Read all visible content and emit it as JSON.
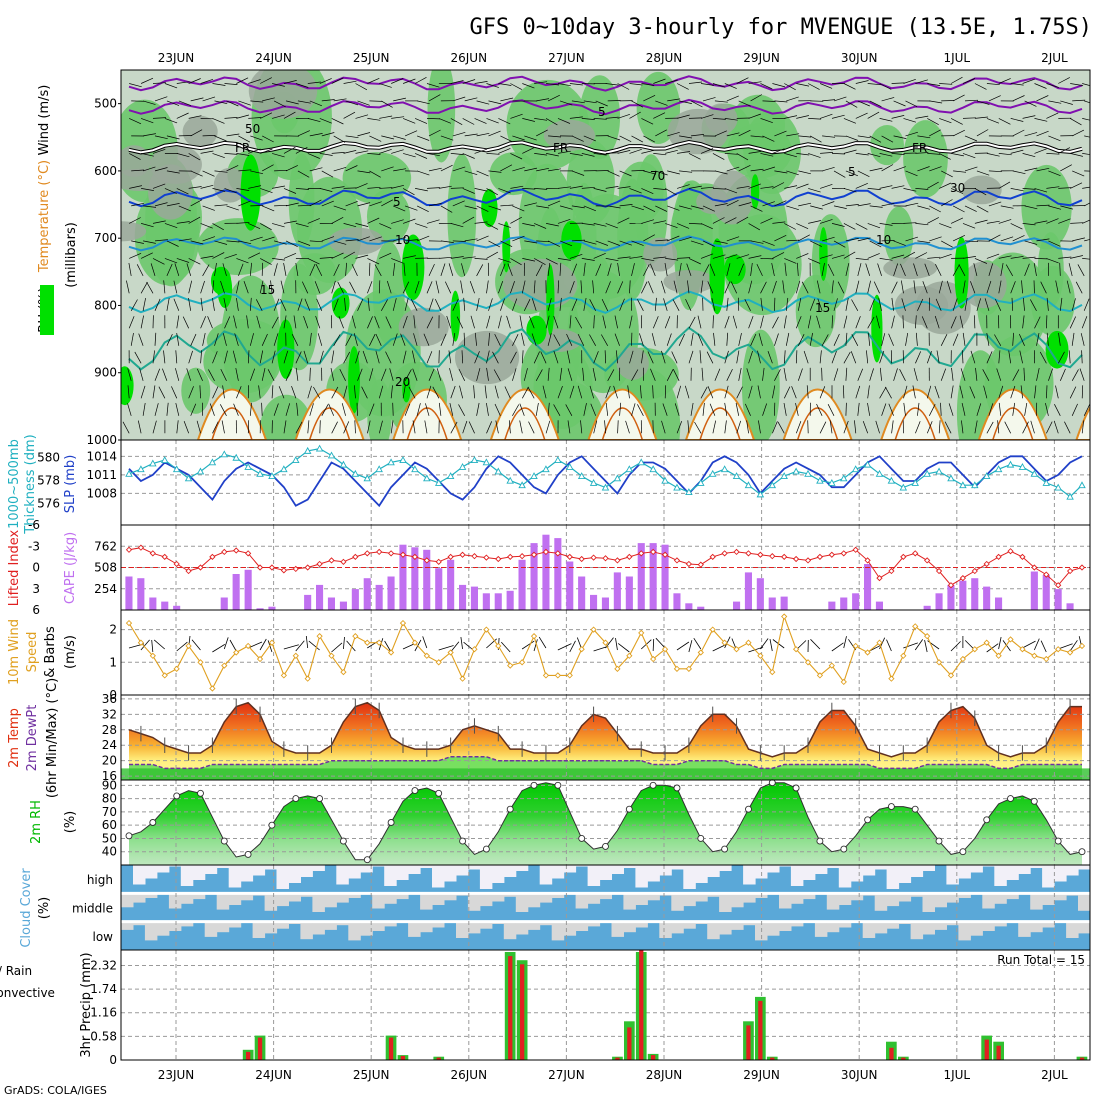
{
  "title": "GFS 0~10day 3-hourly for MVENGUE (13.5E, 1.75S)",
  "credit": "GrADS: COLA/IGES",
  "run_total_label": "Run Total = 15",
  "colors": {
    "rh_green": "#00e000",
    "rh_mid": "#6cc86c",
    "rh_light": "#c8d8c8",
    "rh_grey": "#9aa89a",
    "slp": "#2040c8",
    "thickness": "#20b0c0",
    "cape": "#c070f0",
    "lifted": "#e02020",
    "wind": "#e0a020",
    "temp_hot": "#e03010",
    "dewpt": "#7030a0",
    "rh2m": "#00b800",
    "cloud_blue": "#5aa8d8",
    "cloud_grey": "#d8d8d8",
    "precip_total": "#30c030",
    "precip_conv": "#e02020"
  },
  "chart_data": [
    {
      "type": "heatmap",
      "panel": "upper-air",
      "ylabel_parts": [
        "RH (%)",
        "Temperature (°C)",
        "Wind (m/s)"
      ],
      "ylabel_sub": "(millibars)",
      "x_dates": [
        "23JUN",
        "24JUN",
        "25JUN",
        "26JUN",
        "27JUN",
        "28JUN",
        "29JUN",
        "30JUN",
        "1JUL",
        "2JUL"
      ],
      "yticks": [
        500,
        600,
        700,
        800,
        900,
        1000
      ],
      "ylim": [
        450,
        1000
      ],
      "contour_labels": [
        "FR",
        "FR",
        "FR",
        "5",
        "5",
        "5",
        "10",
        "10",
        "15",
        "15",
        "20",
        "30",
        "50",
        "70"
      ]
    },
    {
      "type": "line",
      "panel": "slp-thickness",
      "ylabel_left": [
        "1000~500mb",
        "Thickness (dm)"
      ],
      "ylabel_right": "SLP (mb)",
      "yticks_left": [
        576,
        578,
        580
      ],
      "yticks_right": [
        1008,
        1011,
        1014
      ],
      "slp_values": [
        1012,
        1010,
        1011,
        1013,
        1012,
        1011,
        1009,
        1007,
        1010,
        1012,
        1013,
        1012,
        1011,
        1009,
        1006,
        1007,
        1010,
        1013,
        1012,
        1010,
        1008,
        1006,
        1009,
        1011,
        1013,
        1012,
        1010,
        1008,
        1007,
        1009,
        1012,
        1014,
        1013,
        1011,
        1009,
        1008,
        1011,
        1013,
        1014,
        1012,
        1010,
        1008,
        1011,
        1013,
        1013,
        1012,
        1010,
        1008,
        1010,
        1013,
        1014,
        1013,
        1011,
        1008,
        1010,
        1012,
        1013,
        1012,
        1011,
        1009,
        1009,
        1011,
        1013,
        1014,
        1012,
        1010,
        1010,
        1012,
        1013,
        1013,
        1011,
        1009,
        1011,
        1013,
        1014,
        1014,
        1012,
        1010,
        1011,
        1013,
        1014
      ],
      "thickness_values": [
        578.6,
        579.0,
        579.5,
        579.8,
        579.0,
        578.2,
        578.8,
        579.6,
        580.3,
        580.0,
        579.2,
        578.6,
        578.4,
        579.0,
        579.8,
        580.6,
        580.8,
        580.2,
        579.4,
        578.6,
        578.2,
        579.0,
        579.6,
        579.8,
        579.0,
        578.2,
        577.8,
        578.4,
        579.2,
        579.8,
        579.6,
        578.8,
        578.0,
        577.6,
        578.4,
        579.0,
        579.8,
        579.2,
        578.4,
        577.8,
        577.4,
        578.2,
        579.0,
        579.6,
        579.0,
        578.0,
        577.4,
        577.0,
        577.8,
        578.6,
        579.0,
        578.4,
        577.6,
        576.8,
        577.6,
        578.4,
        578.8,
        578.6,
        578.0,
        577.8,
        578.2,
        579.0,
        579.4,
        578.6,
        578.0,
        577.4,
        577.8,
        578.6,
        578.8,
        578.2,
        577.6,
        577.6,
        578.4,
        579.0,
        579.4,
        579.2,
        578.6,
        577.8,
        577.4,
        576.6,
        577.6
      ]
    },
    {
      "type": "bar",
      "panel": "cape-lifted",
      "ylabel_left": "Lifted Index",
      "ylabel_right": "CAPE (J/kg)",
      "yticks_left": [
        -6,
        -3,
        0,
        3,
        6
      ],
      "yticks_right": [
        254,
        508,
        762
      ],
      "cape_values": [
        400,
        380,
        150,
        100,
        50,
        0,
        0,
        0,
        150,
        430,
        480,
        20,
        40,
        0,
        0,
        180,
        300,
        150,
        100,
        250,
        380,
        300,
        400,
        780,
        750,
        720,
        500,
        600,
        300,
        280,
        200,
        200,
        230,
        600,
        800,
        900,
        860,
        580,
        400,
        180,
        150,
        450,
        400,
        800,
        800,
        780,
        200,
        80,
        40,
        0,
        0,
        100,
        450,
        380,
        150,
        160,
        0,
        0,
        0,
        100,
        150,
        200,
        550,
        100,
        0,
        0,
        0,
        50,
        200,
        300,
        350,
        380,
        280,
        150,
        0,
        0,
        460,
        420,
        250,
        80,
        0
      ],
      "lifted_values": [
        -2.5,
        -2.8,
        -2.0,
        -1.5,
        -0.5,
        0.5,
        0.0,
        -1.5,
        -2.2,
        -2.4,
        -2.0,
        0.0,
        0.0,
        0.4,
        0.2,
        0.0,
        -0.5,
        -1.0,
        -0.8,
        -1.5,
        -2.0,
        -2.2,
        -2.0,
        -1.8,
        -1.5,
        -1.0,
        -0.8,
        -1.5,
        -1.8,
        -1.6,
        -1.4,
        -1.2,
        -1.5,
        -1.6,
        -1.8,
        -2.2,
        -2.0,
        -1.5,
        -1.2,
        -1.4,
        -1.3,
        -1.0,
        -1.5,
        -2.0,
        -2.2,
        -1.8,
        -1.0,
        -0.5,
        -0.4,
        -1.5,
        -2.0,
        -2.2,
        -2.0,
        -1.8,
        -1.6,
        -1.5,
        -1.2,
        -1.0,
        -1.5,
        -1.8,
        -2.0,
        -2.5,
        -1.0,
        1.5,
        0.5,
        -1.5,
        -2.0,
        -1.0,
        0.5,
        2.5,
        1.5,
        0.5,
        -0.5,
        -1.5,
        -2.3,
        -1.5,
        0.0,
        1.0,
        2.5,
        0.5,
        0.0
      ]
    },
    {
      "type": "line",
      "panel": "wind10m",
      "ylabel": [
        "10m Wind",
        "Speed",
        "& Barbs",
        "(m/s)"
      ],
      "yticks": [
        0,
        1,
        2
      ],
      "ylim": [
        0,
        2.6
      ],
      "values": [
        2.2,
        1.6,
        1.2,
        0.6,
        0.8,
        1.5,
        1.0,
        0.2,
        0.9,
        1.3,
        1.5,
        1.1,
        1.6,
        0.6,
        1.2,
        0.5,
        1.8,
        1.2,
        0.7,
        1.8,
        1.6,
        1.6,
        1.3,
        2.2,
        1.6,
        1.2,
        1.0,
        1.3,
        0.5,
        1.4,
        2.0,
        1.5,
        0.9,
        1.0,
        1.8,
        0.6,
        0.6,
        0.6,
        1.4,
        2.0,
        1.6,
        0.8,
        1.2,
        1.9,
        1.1,
        1.4,
        0.8,
        0.8,
        1.3,
        2.0,
        1.6,
        1.4,
        1.6,
        1.2,
        0.7,
        2.4,
        1.4,
        1.0,
        0.6,
        0.9,
        0.4,
        1.5,
        1.3,
        1.6,
        0.5,
        1.2,
        2.1,
        1.8,
        1.0,
        0.6,
        1.1,
        1.4,
        1.6,
        1.2,
        1.7,
        1.4,
        1.2,
        1.1,
        1.4,
        1.3,
        1.5
      ]
    },
    {
      "type": "area",
      "panel": "temp2m",
      "ylabel": [
        "2m Temp",
        "2m DewPt",
        "(6hr Min/Max) (°C)"
      ],
      "yticks": [
        16,
        20,
        24,
        28,
        32,
        36
      ],
      "ylim": [
        15,
        37
      ],
      "temp_values": [
        28,
        27,
        26,
        24,
        23,
        22,
        22,
        24,
        30,
        34,
        35,
        32,
        25,
        23,
        22,
        22,
        22,
        24,
        30,
        34,
        35,
        33,
        26,
        24,
        23,
        23,
        23,
        24,
        28,
        29,
        28,
        27,
        23,
        23,
        22,
        22,
        22,
        24,
        29,
        32,
        31,
        27,
        23,
        23,
        22,
        22,
        22,
        24,
        29,
        32,
        32,
        29,
        23,
        22,
        21,
        22,
        22,
        24,
        30,
        33,
        33,
        29,
        23,
        22,
        21,
        22,
        22,
        24,
        30,
        33,
        34,
        31,
        24,
        22,
        21,
        22,
        22,
        24,
        30,
        34,
        34
      ],
      "dewpt_values": [
        19,
        19,
        19,
        18,
        18,
        18,
        18,
        19,
        19,
        19,
        19,
        19,
        19,
        19,
        19,
        19,
        19,
        20,
        20,
        20,
        20,
        20,
        20,
        20,
        20,
        20,
        20,
        21,
        21,
        21,
        21,
        20,
        20,
        20,
        20,
        20,
        20,
        20,
        20,
        20,
        20,
        20,
        20,
        20,
        19,
        19,
        19,
        20,
        20,
        20,
        20,
        19,
        19,
        18,
        18,
        19,
        19,
        19,
        19,
        19,
        19,
        19,
        19,
        18,
        18,
        18,
        18,
        19,
        19,
        19,
        19,
        19,
        19,
        18,
        18,
        19,
        19,
        19,
        19,
        19,
        19
      ]
    },
    {
      "type": "area",
      "panel": "rh2m",
      "ylabel": [
        "2m RH",
        "(%)"
      ],
      "yticks": [
        40,
        50,
        60,
        70,
        80,
        90
      ],
      "ylim": [
        30,
        94
      ],
      "values": [
        52,
        55,
        62,
        72,
        82,
        86,
        84,
        66,
        48,
        36,
        38,
        46,
        60,
        74,
        80,
        82,
        80,
        64,
        48,
        34,
        34,
        46,
        62,
        78,
        86,
        88,
        84,
        66,
        48,
        38,
        42,
        55,
        72,
        86,
        90,
        92,
        90,
        70,
        50,
        42,
        44,
        56,
        72,
        86,
        90,
        90,
        88,
        68,
        50,
        40,
        42,
        55,
        72,
        88,
        92,
        92,
        88,
        66,
        48,
        40,
        42,
        52,
        64,
        72,
        74,
        74,
        72,
        60,
        48,
        38,
        40,
        50,
        64,
        76,
        80,
        82,
        78,
        64,
        48,
        38,
        40
      ]
    },
    {
      "type": "heatmap",
      "panel": "cloud-cover",
      "ylabel": [
        "Cloud Cover",
        "(%)"
      ],
      "level_labels": [
        "high",
        "middle",
        "low"
      ]
    },
    {
      "type": "bar",
      "panel": "precip",
      "ylabel": [
        "3hr Precip (mm)"
      ],
      "legend_left": [
        "Total / Rain",
        "Convective"
      ],
      "yticks": [
        0,
        0.58,
        1.16,
        1.74,
        2.32
      ],
      "ylim": [
        0,
        2.7
      ],
      "total_values": [
        0,
        0,
        0,
        0,
        0,
        0,
        0,
        0,
        0,
        0,
        0.25,
        0.6,
        0,
        0,
        0,
        0,
        0,
        0,
        0,
        0,
        0,
        0,
        0.6,
        0.12,
        0,
        0,
        0.08,
        0,
        0,
        0,
        0,
        0,
        2.65,
        2.45,
        0,
        0,
        0,
        0,
        0,
        0,
        0,
        0.08,
        0.95,
        2.65,
        0.15,
        0,
        0,
        0,
        0,
        0,
        0,
        0,
        0.95,
        1.55,
        0.08,
        0,
        0,
        0,
        0,
        0,
        0,
        0,
        0,
        0,
        0.45,
        0.08,
        0,
        0,
        0,
        0,
        0,
        0,
        0.6,
        0.45,
        0,
        0,
        0,
        0,
        0,
        0,
        0.08
      ],
      "conv_values": [
        0,
        0,
        0,
        0,
        0,
        0,
        0,
        0,
        0,
        0,
        0.2,
        0.55,
        0,
        0,
        0,
        0,
        0,
        0,
        0,
        0,
        0,
        0,
        0.55,
        0.1,
        0,
        0,
        0.06,
        0,
        0,
        0,
        0,
        0,
        2.55,
        2.35,
        0,
        0,
        0,
        0,
        0,
        0,
        0,
        0.06,
        0.8,
        2.7,
        0.12,
        0,
        0,
        0,
        0,
        0,
        0,
        0,
        0.85,
        1.45,
        0.06,
        0,
        0,
        0,
        0,
        0,
        0,
        0,
        0,
        0,
        0.3,
        0.06,
        0,
        0,
        0,
        0,
        0,
        0,
        0.5,
        0.35,
        0,
        0,
        0,
        0,
        0,
        0,
        0.06
      ]
    }
  ]
}
